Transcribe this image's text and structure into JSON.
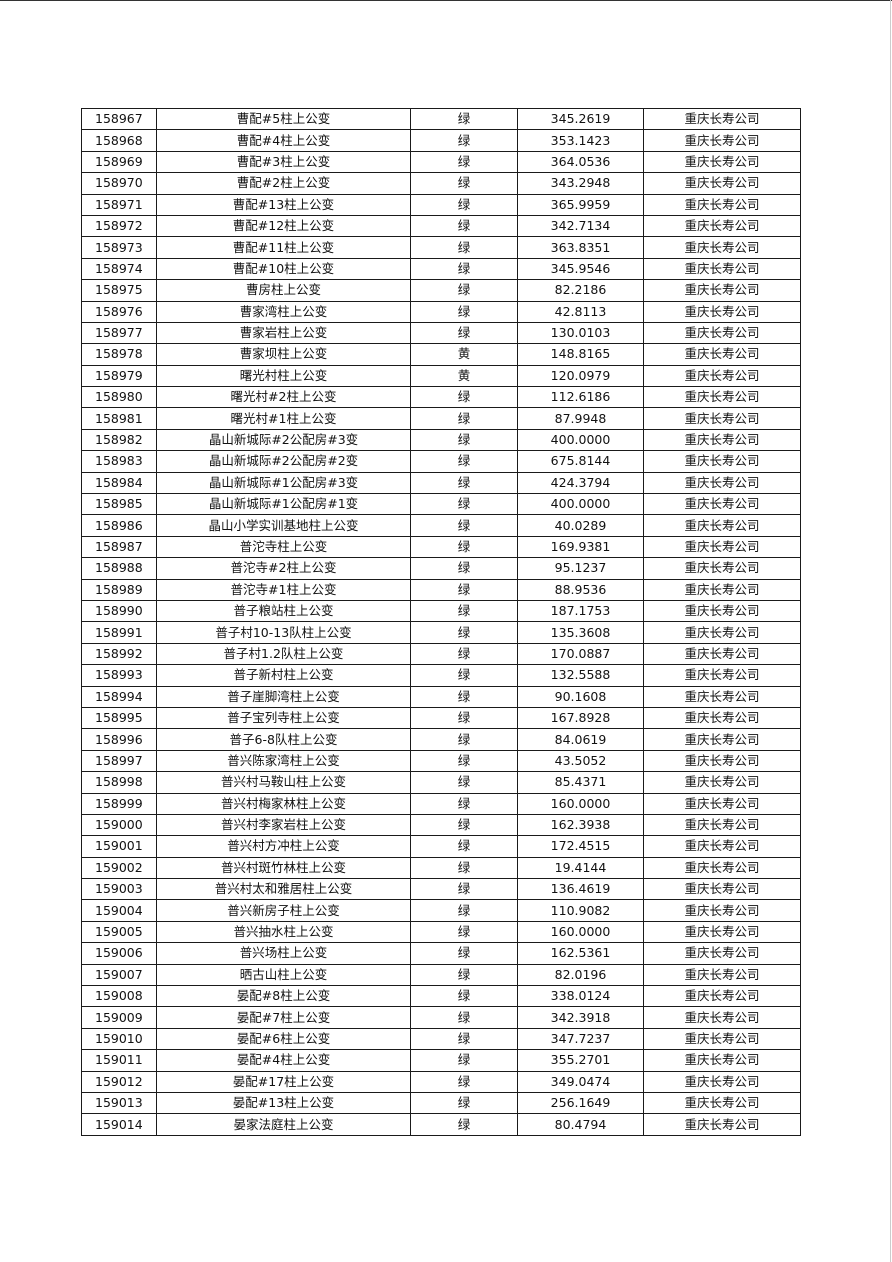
{
  "table": {
    "rows": [
      [
        "158967",
        "曹配#5柱上公变",
        "绿",
        "345.2619",
        "重庆长寿公司"
      ],
      [
        "158968",
        "曹配#4柱上公变",
        "绿",
        "353.1423",
        "重庆长寿公司"
      ],
      [
        "158969",
        "曹配#3柱上公变",
        "绿",
        "364.0536",
        "重庆长寿公司"
      ],
      [
        "158970",
        "曹配#2柱上公变",
        "绿",
        "343.2948",
        "重庆长寿公司"
      ],
      [
        "158971",
        "曹配#13柱上公变",
        "绿",
        "365.9959",
        "重庆长寿公司"
      ],
      [
        "158972",
        "曹配#12柱上公变",
        "绿",
        "342.7134",
        "重庆长寿公司"
      ],
      [
        "158973",
        "曹配#11柱上公变",
        "绿",
        "363.8351",
        "重庆长寿公司"
      ],
      [
        "158974",
        "曹配#10柱上公变",
        "绿",
        "345.9546",
        "重庆长寿公司"
      ],
      [
        "158975",
        "曹房柱上公变",
        "绿",
        "82.2186",
        "重庆长寿公司"
      ],
      [
        "158976",
        "曹家湾柱上公变",
        "绿",
        "42.8113",
        "重庆长寿公司"
      ],
      [
        "158977",
        "曹家岩柱上公变",
        "绿",
        "130.0103",
        "重庆长寿公司"
      ],
      [
        "158978",
        "曹家坝柱上公变",
        "黄",
        "148.8165",
        "重庆长寿公司"
      ],
      [
        "158979",
        "曙光村柱上公变",
        "黄",
        "120.0979",
        "重庆长寿公司"
      ],
      [
        "158980",
        "曙光村#2柱上公变",
        "绿",
        "112.6186",
        "重庆长寿公司"
      ],
      [
        "158981",
        "曙光村#1柱上公变",
        "绿",
        "87.9948",
        "重庆长寿公司"
      ],
      [
        "158982",
        "晶山新城际#2公配房#3变",
        "绿",
        "400.0000",
        "重庆长寿公司"
      ],
      [
        "158983",
        "晶山新城际#2公配房#2变",
        "绿",
        "675.8144",
        "重庆长寿公司"
      ],
      [
        "158984",
        "晶山新城际#1公配房#3变",
        "绿",
        "424.3794",
        "重庆长寿公司"
      ],
      [
        "158985",
        "晶山新城际#1公配房#1变",
        "绿",
        "400.0000",
        "重庆长寿公司"
      ],
      [
        "158986",
        "晶山小学实训基地柱上公变",
        "绿",
        "40.0289",
        "重庆长寿公司"
      ],
      [
        "158987",
        "普沱寺柱上公变",
        "绿",
        "169.9381",
        "重庆长寿公司"
      ],
      [
        "158988",
        "普沱寺#2柱上公变",
        "绿",
        "95.1237",
        "重庆长寿公司"
      ],
      [
        "158989",
        "普沱寺#1柱上公变",
        "绿",
        "88.9536",
        "重庆长寿公司"
      ],
      [
        "158990",
        "普子粮站柱上公变",
        "绿",
        "187.1753",
        "重庆长寿公司"
      ],
      [
        "158991",
        "普子村10-13队柱上公变",
        "绿",
        "135.3608",
        "重庆长寿公司"
      ],
      [
        "158992",
        "普子村1.2队柱上公变",
        "绿",
        "170.0887",
        "重庆长寿公司"
      ],
      [
        "158993",
        "普子新村柱上公变",
        "绿",
        "132.5588",
        "重庆长寿公司"
      ],
      [
        "158994",
        "普子崖脚湾柱上公变",
        "绿",
        "90.1608",
        "重庆长寿公司"
      ],
      [
        "158995",
        "普子宝列寺柱上公变",
        "绿",
        "167.8928",
        "重庆长寿公司"
      ],
      [
        "158996",
        "普子6-8队柱上公变",
        "绿",
        "84.0619",
        "重庆长寿公司"
      ],
      [
        "158997",
        "普兴陈家湾柱上公变",
        "绿",
        "43.5052",
        "重庆长寿公司"
      ],
      [
        "158998",
        "普兴村马鞍山柱上公变",
        "绿",
        "85.4371",
        "重庆长寿公司"
      ],
      [
        "158999",
        "普兴村梅家林柱上公变",
        "绿",
        "160.0000",
        "重庆长寿公司"
      ],
      [
        "159000",
        "普兴村李家岩柱上公变",
        "绿",
        "162.3938",
        "重庆长寿公司"
      ],
      [
        "159001",
        "普兴村方冲柱上公变",
        "绿",
        "172.4515",
        "重庆长寿公司"
      ],
      [
        "159002",
        "普兴村斑竹林柱上公变",
        "绿",
        "19.4144",
        "重庆长寿公司"
      ],
      [
        "159003",
        "普兴村太和雅居柱上公变",
        "绿",
        "136.4619",
        "重庆长寿公司"
      ],
      [
        "159004",
        "普兴新房子柱上公变",
        "绿",
        "110.9082",
        "重庆长寿公司"
      ],
      [
        "159005",
        "普兴抽水柱上公变",
        "绿",
        "160.0000",
        "重庆长寿公司"
      ],
      [
        "159006",
        "普兴场柱上公变",
        "绿",
        "162.5361",
        "重庆长寿公司"
      ],
      [
        "159007",
        "晒古山柱上公变",
        "绿",
        "82.0196",
        "重庆长寿公司"
      ],
      [
        "159008",
        "晏配#8柱上公变",
        "绿",
        "338.0124",
        "重庆长寿公司"
      ],
      [
        "159009",
        "晏配#7柱上公变",
        "绿",
        "342.3918",
        "重庆长寿公司"
      ],
      [
        "159010",
        "晏配#6柱上公变",
        "绿",
        "347.7237",
        "重庆长寿公司"
      ],
      [
        "159011",
        "晏配#4柱上公变",
        "绿",
        "355.2701",
        "重庆长寿公司"
      ],
      [
        "159012",
        "晏配#17柱上公变",
        "绿",
        "349.0474",
        "重庆长寿公司"
      ],
      [
        "159013",
        "晏配#13柱上公变",
        "绿",
        "256.1649",
        "重庆长寿公司"
      ],
      [
        "159014",
        "晏家法庭柱上公变",
        "绿",
        "80.4794",
        "重庆长寿公司"
      ]
    ]
  }
}
